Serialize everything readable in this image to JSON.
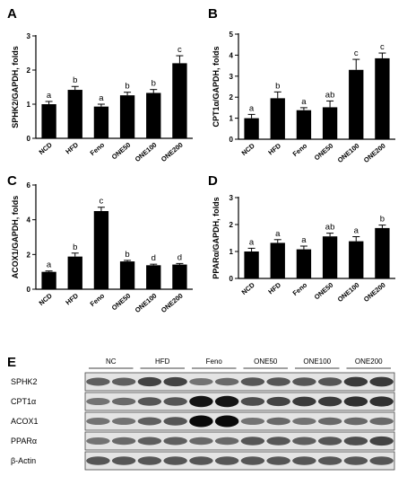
{
  "chart_data": [
    {
      "type": "bar",
      "panel": "A",
      "ylabel": "SPHK2/GAPDH, folds",
      "ylim": [
        0,
        3
      ],
      "yticks": [
        0,
        1,
        2,
        3
      ],
      "categories": [
        "NCD",
        "HFD",
        "Feno",
        "ONE50",
        "ONE100",
        "ONE200"
      ],
      "values": [
        1.0,
        1.42,
        0.93,
        1.26,
        1.33,
        2.2
      ],
      "errors": [
        0.08,
        0.1,
        0.07,
        0.09,
        0.1,
        0.22
      ],
      "significance": [
        "a",
        "b",
        "a",
        "b",
        "b",
        "c"
      ]
    },
    {
      "type": "bar",
      "panel": "B",
      "ylabel": "CPT1α/GAPDH, folds",
      "ylim": [
        0,
        5
      ],
      "yticks": [
        0,
        1,
        2,
        3,
        4,
        5
      ],
      "categories": [
        "NCD",
        "HFD",
        "Feno",
        "ONE50",
        "ONE100",
        "ONE200"
      ],
      "values": [
        1.0,
        1.95,
        1.38,
        1.52,
        3.3,
        3.85
      ],
      "errors": [
        0.18,
        0.3,
        0.12,
        0.3,
        0.5,
        0.25
      ],
      "significance": [
        "a",
        "b",
        "a",
        "ab",
        "c",
        "c"
      ]
    },
    {
      "type": "bar",
      "panel": "C",
      "ylabel": "ACOX1/GAPDH, folds",
      "ylim": [
        0,
        6
      ],
      "yticks": [
        0,
        2,
        4,
        6
      ],
      "categories": [
        "NCD",
        "HFD",
        "Feno",
        "ONE50",
        "ONE100",
        "ONE200"
      ],
      "values": [
        1.0,
        1.88,
        4.5,
        1.6,
        1.38,
        1.42
      ],
      "errors": [
        0.05,
        0.2,
        0.22,
        0.06,
        0.06,
        0.06
      ],
      "significance": [
        "a",
        "b",
        "c",
        "b",
        "d",
        "d"
      ]
    },
    {
      "type": "bar",
      "panel": "D",
      "ylabel": "PPARα/GAPDH, folds",
      "ylim": [
        0,
        3
      ],
      "yticks": [
        0,
        1,
        2,
        3
      ],
      "categories": [
        "NCD",
        "HFD",
        "Feno",
        "ONE50",
        "ONE100",
        "ONE200"
      ],
      "values": [
        1.0,
        1.32,
        1.08,
        1.56,
        1.38,
        1.87
      ],
      "errors": [
        0.12,
        0.12,
        0.12,
        0.12,
        0.17,
        0.11
      ],
      "significance": [
        "a",
        "a",
        "a",
        "ab",
        "a",
        "b"
      ]
    }
  ],
  "blot": {
    "panel": "E",
    "groups": [
      "NC",
      "HFD",
      "Feno",
      "ONE50",
      "ONE100",
      "ONE200"
    ],
    "rows": [
      {
        "label": "SPHK2",
        "bands": [
          0.55,
          0.55,
          0.7,
          0.7,
          0.45,
          0.5,
          0.6,
          0.6,
          0.6,
          0.6,
          0.75,
          0.75
        ]
      },
      {
        "label": "CPT1α",
        "bands": [
          0.45,
          0.5,
          0.6,
          0.6,
          0.95,
          0.95,
          0.65,
          0.7,
          0.75,
          0.75,
          0.8,
          0.8
        ]
      },
      {
        "label": "ACOX1",
        "bands": [
          0.45,
          0.45,
          0.55,
          0.6,
          1.0,
          1.0,
          0.45,
          0.5,
          0.45,
          0.5,
          0.5,
          0.5
        ]
      },
      {
        "label": "PPARα",
        "bands": [
          0.45,
          0.5,
          0.55,
          0.55,
          0.5,
          0.5,
          0.6,
          0.6,
          0.55,
          0.6,
          0.65,
          0.7
        ]
      },
      {
        "label": "β-Actin",
        "bands": [
          0.6,
          0.6,
          0.6,
          0.6,
          0.6,
          0.6,
          0.6,
          0.6,
          0.6,
          0.6,
          0.6,
          0.6
        ]
      }
    ]
  }
}
